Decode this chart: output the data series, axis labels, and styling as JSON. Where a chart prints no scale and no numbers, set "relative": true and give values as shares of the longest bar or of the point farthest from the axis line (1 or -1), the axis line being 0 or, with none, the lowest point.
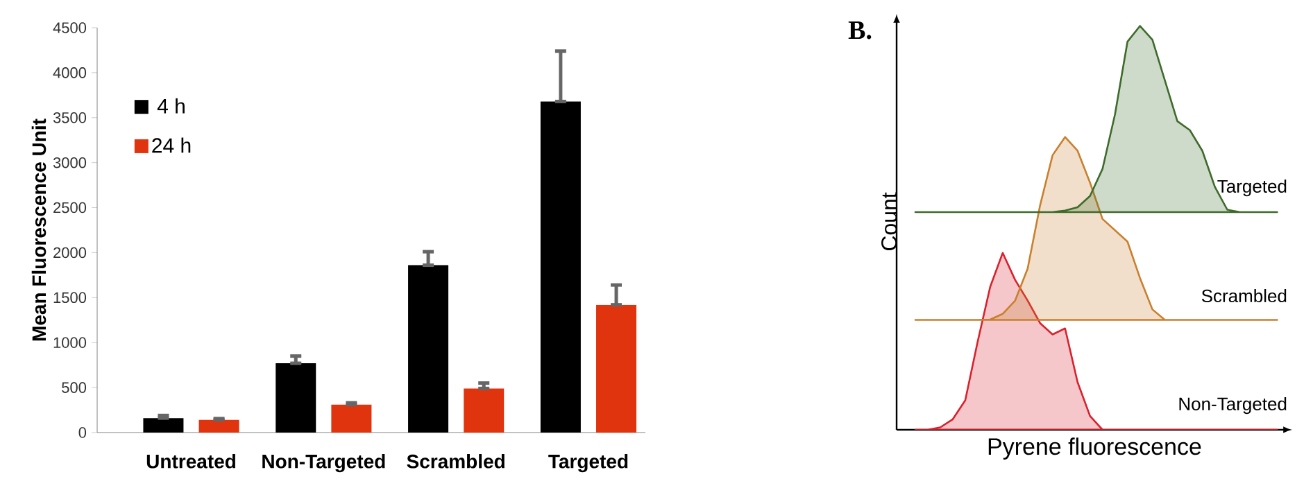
{
  "chart_data": [
    {
      "type": "bar",
      "ylabel": "Mean Fluorescence Unit",
      "categories": [
        "Untreated",
        "Non-Targeted",
        "Scrambled",
        "Targeted"
      ],
      "series": [
        {
          "name": "4 h",
          "color": "#000000",
          "values": [
            160,
            770,
            1860,
            3680
          ],
          "errors": [
            [
              160,
              190
            ],
            [
              770,
              850
            ],
            [
              1860,
              2010
            ],
            [
              3680,
              4240
            ]
          ]
        },
        {
          "name": "24 h",
          "color": "#e0340f",
          "values": [
            140,
            310,
            490,
            1420
          ],
          "errors": [
            [
              140,
              155
            ],
            [
              310,
              330
            ],
            [
              490,
              550
            ],
            [
              1420,
              1640
            ]
          ]
        }
      ],
      "ylim": [
        0,
        4500
      ],
      "yticks": [
        0,
        500,
        1000,
        1500,
        2000,
        2500,
        3000,
        3500,
        4000,
        4500
      ],
      "legend": "top left",
      "grid": false
    },
    {
      "type": "area",
      "relative": true,
      "title": "B.",
      "xlabel": "Pyrene fluorescence",
      "ylabel": "Count",
      "categories": [
        null,
        null,
        null,
        null,
        null,
        null,
        null,
        null,
        null,
        null,
        null,
        null,
        null,
        null,
        null,
        null,
        null,
        null,
        null,
        null,
        null,
        null,
        null,
        null,
        null,
        null,
        null,
        null,
        null,
        null
      ],
      "series": [
        {
          "name": "Non-Targeted",
          "color": "#d9212c",
          "values": [
            0,
            0,
            0.006,
            0.026,
            0.073,
            0.219,
            0.354,
            0.438,
            0.371,
            0.32,
            0.264,
            0.236,
            0.251,
            0.118,
            0.034,
            0,
            0,
            0,
            0,
            0,
            0,
            0,
            0,
            0,
            0,
            0,
            0,
            0,
            0,
            0
          ]
        },
        {
          "name": "Scrambled",
          "color": "#c8802e",
          "values": [
            0.272,
            0.272,
            0.272,
            0.272,
            0.272,
            0.272,
            0.273,
            0.287,
            0.32,
            0.399,
            0.556,
            0.68,
            0.725,
            0.691,
            0.612,
            0.522,
            0.494,
            0.466,
            0.376,
            0.298,
            0.272,
            0.272,
            0.272,
            0.272,
            0.272,
            0.272,
            0.272,
            0.272,
            0.272,
            0.272
          ]
        },
        {
          "name": "Targeted",
          "color": "#3d6b2a",
          "values": [
            0.539,
            0.539,
            0.539,
            0.539,
            0.539,
            0.539,
            0.539,
            0.539,
            0.539,
            0.539,
            0.539,
            0.539,
            0.543,
            0.551,
            0.579,
            0.646,
            0.781,
            0.961,
            1.0,
            0.966,
            0.865,
            0.764,
            0.742,
            0.691,
            0.602,
            0.545,
            0.539,
            0.539,
            0.539,
            0.539
          ]
        }
      ]
    }
  ]
}
